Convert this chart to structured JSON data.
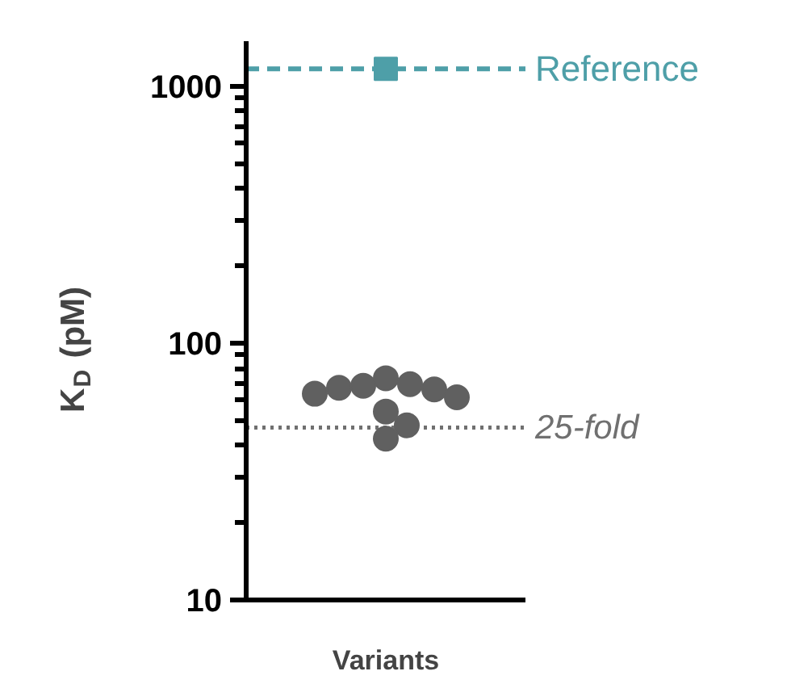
{
  "chart_data": {
    "type": "scatter",
    "ylabel": "K$_{D}$ (pM)",
    "categories": [
      "Variants"
    ],
    "log": true,
    "ylim": [
      10,
      1500
    ],
    "yticks": [
      10,
      100,
      1000
    ],
    "grid": false,
    "series": [
      {
        "marker": "circle",
        "color": "#606060",
        "x": [
          "Variants",
          "Variants",
          "Variants",
          "Variants",
          "Variants",
          "Variants",
          "Variants",
          "Variants",
          "Variants",
          "Variants"
        ],
        "values": [
          73.2,
          69.4,
          68.4,
          67.2,
          66.2,
          63.7,
          61.7,
          54.3,
          48.0,
          42.6
        ]
      },
      {
        "marker": "square",
        "color": "#4e9fa8",
        "x": [
          "Variants"
        ],
        "values": [
          1170
        ]
      }
    ],
    "ref_lines": [
      {
        "axis": "y",
        "value": 1170,
        "label": "Reference",
        "color": "#4e9fa8",
        "line_style": "dashed"
      },
      {
        "axis": "y",
        "value": 47,
        "label": "25-fold",
        "color": "#707070",
        "line_style": "dotted"
      }
    ]
  }
}
